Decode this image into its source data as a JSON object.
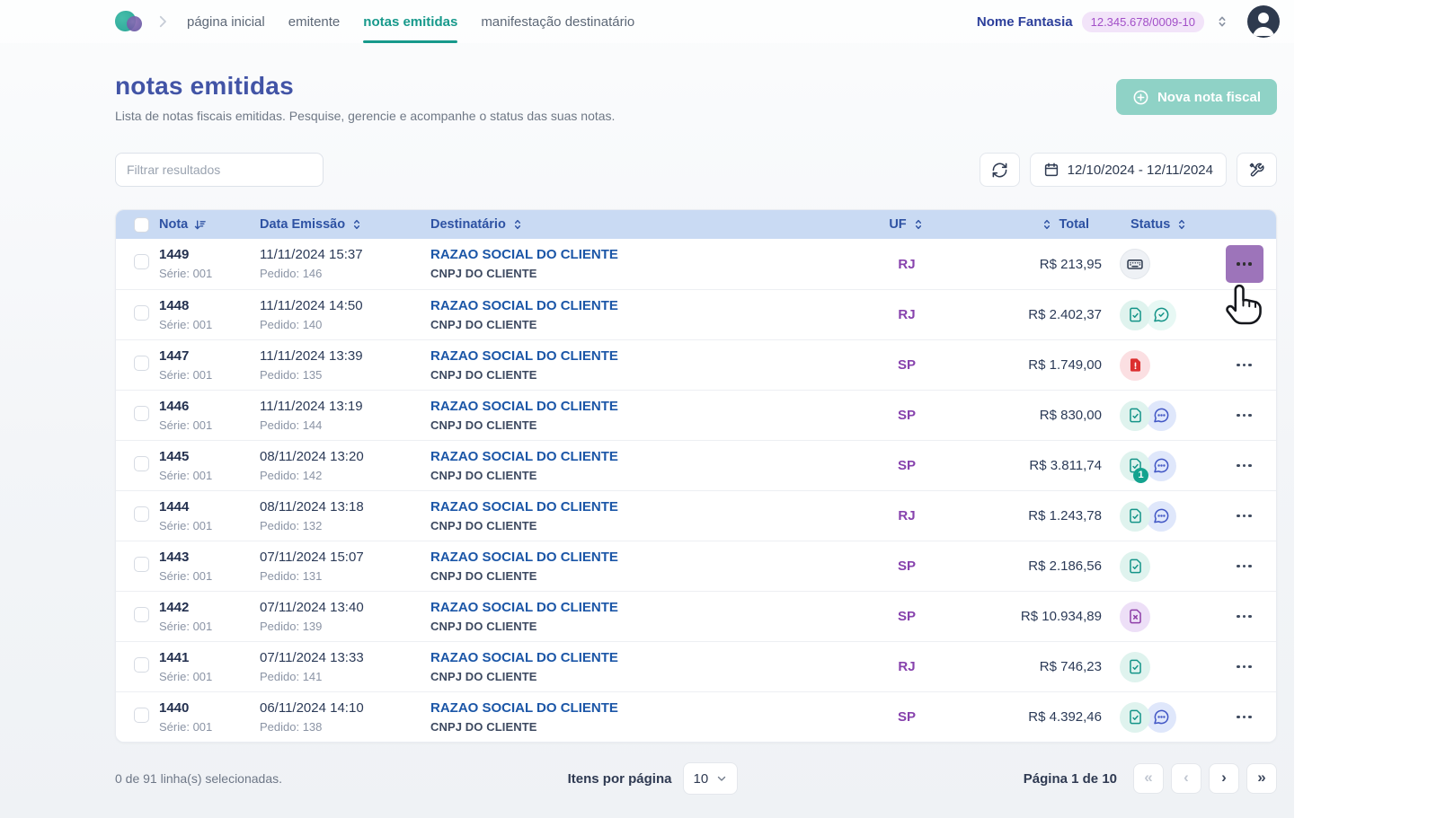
{
  "nav": {
    "items": [
      {
        "label": "página inicial",
        "active": false
      },
      {
        "label": "emitente",
        "active": false
      },
      {
        "label": "notas emitidas",
        "active": true
      },
      {
        "label": "manifestação destinatário",
        "active": false
      }
    ],
    "company": {
      "name": "Nome Fantasia",
      "cnpj": "12.345.678/0009-10"
    }
  },
  "header": {
    "title": "notas emitidas",
    "subtitle": "Lista de notas fiscais emitidas. Pesquise, gerencie e acompanhe o status das suas notas.",
    "new_button": "Nova nota fiscal"
  },
  "toolbar": {
    "filter_placeholder": "Filtrar resultados",
    "date_range": "12/10/2024 - 12/11/2024"
  },
  "table": {
    "columns": {
      "nota": "Nota",
      "data_emissao": "Data Emissão",
      "destinatario": "Destinatário",
      "uf": "UF",
      "total": "Total",
      "status": "Status"
    },
    "rows": [
      {
        "nota": "1449",
        "serie": "Série: 001",
        "data": "11/11/2024 15:37",
        "pedido": "Pedido: 146",
        "destinatario": "RAZAO SOCIAL DO CLIENTE",
        "cnpj": "CNPJ DO CLIENTE",
        "uf": "RJ",
        "total": "R$ 213,95",
        "status": [
          "keyboard"
        ],
        "badge": null,
        "action_highlight": true
      },
      {
        "nota": "1448",
        "serie": "Série: 001",
        "data": "11/11/2024 14:50",
        "pedido": "Pedido: 140",
        "destinatario": "RAZAO SOCIAL DO CLIENTE",
        "cnpj": "CNPJ DO CLIENTE",
        "uf": "RJ",
        "total": "R$ 2.402,37",
        "status": [
          "doc-check",
          "chat-check"
        ],
        "badge": null,
        "action_highlight": false
      },
      {
        "nota": "1447",
        "serie": "Série: 001",
        "data": "11/11/2024 13:39",
        "pedido": "Pedido: 135",
        "destinatario": "RAZAO SOCIAL DO CLIENTE",
        "cnpj": "CNPJ DO CLIENTE",
        "uf": "SP",
        "total": "R$ 1.749,00",
        "status": [
          "doc-alert"
        ],
        "badge": null,
        "action_highlight": false
      },
      {
        "nota": "1446",
        "serie": "Série: 001",
        "data": "11/11/2024 13:19",
        "pedido": "Pedido: 144",
        "destinatario": "RAZAO SOCIAL DO CLIENTE",
        "cnpj": "CNPJ DO CLIENTE",
        "uf": "SP",
        "total": "R$ 830,00",
        "status": [
          "doc-check",
          "chat-dots"
        ],
        "badge": null,
        "action_highlight": false
      },
      {
        "nota": "1445",
        "serie": "Série: 001",
        "data": "08/11/2024 13:20",
        "pedido": "Pedido: 142",
        "destinatario": "RAZAO SOCIAL DO CLIENTE",
        "cnpj": "CNPJ DO CLIENTE",
        "uf": "SP",
        "total": "R$ 3.811,74",
        "status": [
          "doc-check",
          "chat-dots"
        ],
        "badge": "1",
        "action_highlight": false
      },
      {
        "nota": "1444",
        "serie": "Série: 001",
        "data": "08/11/2024 13:18",
        "pedido": "Pedido: 132",
        "destinatario": "RAZAO SOCIAL DO CLIENTE",
        "cnpj": "CNPJ DO CLIENTE",
        "uf": "RJ",
        "total": "R$ 1.243,78",
        "status": [
          "doc-check",
          "chat-dots"
        ],
        "badge": null,
        "action_highlight": false
      },
      {
        "nota": "1443",
        "serie": "Série: 001",
        "data": "07/11/2024 15:07",
        "pedido": "Pedido: 131",
        "destinatario": "RAZAO SOCIAL DO CLIENTE",
        "cnpj": "CNPJ DO CLIENTE",
        "uf": "SP",
        "total": "R$ 2.186,56",
        "status": [
          "doc-check"
        ],
        "badge": null,
        "action_highlight": false
      },
      {
        "nota": "1442",
        "serie": "Série: 001",
        "data": "07/11/2024 13:40",
        "pedido": "Pedido: 139",
        "destinatario": "RAZAO SOCIAL DO CLIENTE",
        "cnpj": "CNPJ DO CLIENTE",
        "uf": "SP",
        "total": "R$ 10.934,89",
        "status": [
          "doc-cancel"
        ],
        "badge": null,
        "action_highlight": false
      },
      {
        "nota": "1441",
        "serie": "Série: 001",
        "data": "07/11/2024 13:33",
        "pedido": "Pedido: 141",
        "destinatario": "RAZAO SOCIAL DO CLIENTE",
        "cnpj": "CNPJ DO CLIENTE",
        "uf": "RJ",
        "total": "R$ 746,23",
        "status": [
          "doc-check"
        ],
        "badge": null,
        "action_highlight": false
      },
      {
        "nota": "1440",
        "serie": "Série: 001",
        "data": "06/11/2024 14:10",
        "pedido": "Pedido: 138",
        "destinatario": "RAZAO SOCIAL DO CLIENTE",
        "cnpj": "CNPJ DO CLIENTE",
        "uf": "SP",
        "total": "R$ 4.392,46",
        "status": [
          "doc-check",
          "chat-dots"
        ],
        "badge": null,
        "action_highlight": false
      }
    ]
  },
  "footer": {
    "selection": "0 de 91 linha(s) selecionadas.",
    "per_page_label": "Itens por página",
    "per_page_value": "10",
    "page_info": "Página 1 de 10",
    "pager": [
      {
        "symbol": "«",
        "name": "first-page-button",
        "disabled": true
      },
      {
        "symbol": "‹",
        "name": "previous-page-button",
        "disabled": true
      },
      {
        "symbol": "›",
        "name": "next-page-button",
        "disabled": false
      },
      {
        "symbol": "»",
        "name": "last-page-button",
        "disabled": false
      }
    ]
  },
  "colors": {
    "accent_teal": "#17998b",
    "title_blue": "#4254a6",
    "table_header_bg": "#c9daf3",
    "uf_purple": "#8742ad",
    "cnpj_badge_bg": "#f2e4f9",
    "cnpj_badge_text": "#a24fc8",
    "status_red": "#dc2f2f",
    "status_cancel_purple": "#8e3fa8",
    "chat_blue": "#4156c5",
    "action_highlight_purple": "#9d74ba",
    "new_button_bg": "#8fd2c6"
  }
}
